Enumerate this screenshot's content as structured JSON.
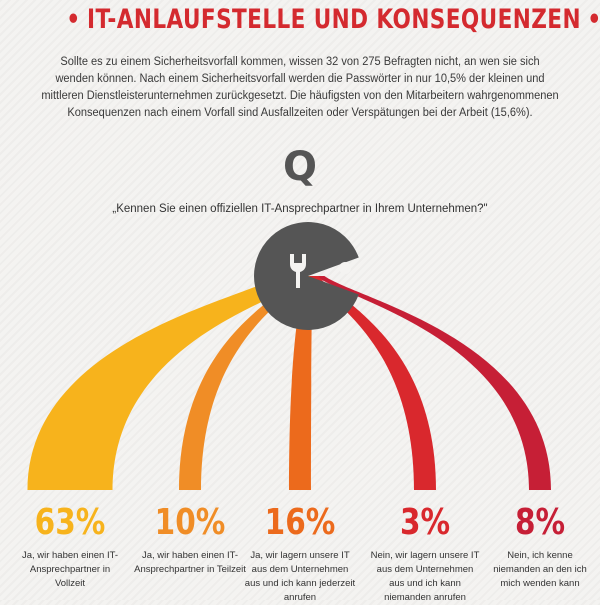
{
  "header": {
    "title": "IT-ANLAUFSTELLE UND KONSEQUENZEN",
    "intro": "Sollte es zu einem Sicherheitsvorfall kommen, wissen 32 von 275 Befragten nicht, an wen sie sich wenden können. Nach einem Sicherheitsvorfall werden die Passwörter in nur 10,5% der kleinen und mittleren Dienstleisterunternehmen zurückgesetzt. Die häufigsten von den Mitarbeitern wahrgenommenen Konsequenzen nach einem Vorfall sind Ausfallzeiten oder Verspätungen bei der Arbeit (15,6%)."
  },
  "question": {
    "letter": "Q",
    "text": "„Kennen Sie einen offiziellen IT-Ansprechpartner in Ihrem Unternehmen?\""
  },
  "icons": {
    "center": "wrench-icon",
    "figure": "pacman-head-icon"
  },
  "colors": {
    "title": "#d42a2f",
    "dark_gray": "#555555",
    "series": [
      "#f7b31c",
      "#f08d26",
      "#ec6a1c",
      "#d9282d",
      "#c61f36"
    ]
  },
  "chart_data": {
    "type": "bar",
    "title": "„Kennen Sie einen offiziellen IT-Ansprechpartner in Ihrem Unternehmen?\"",
    "categories": [
      "Ja, wir haben einen IT-Ansprechpartner in Vollzeit",
      "Ja, wir haben einen IT-Ansprechpartner in Teilzeit",
      "Ja, wir lagern unsere IT aus dem Unternehmen aus und ich kann jederzeit anrufen",
      "Nein, wir lagern unsere IT aus dem Unternehmen aus und ich kann niemanden anrufen",
      "Nein, ich kenne niemanden an den ich mich wenden kann"
    ],
    "values": [
      63,
      10,
      16,
      3,
      8
    ],
    "value_labels": [
      "63%",
      "10%",
      "16%",
      "3%",
      "8%"
    ],
    "unit": "%"
  }
}
